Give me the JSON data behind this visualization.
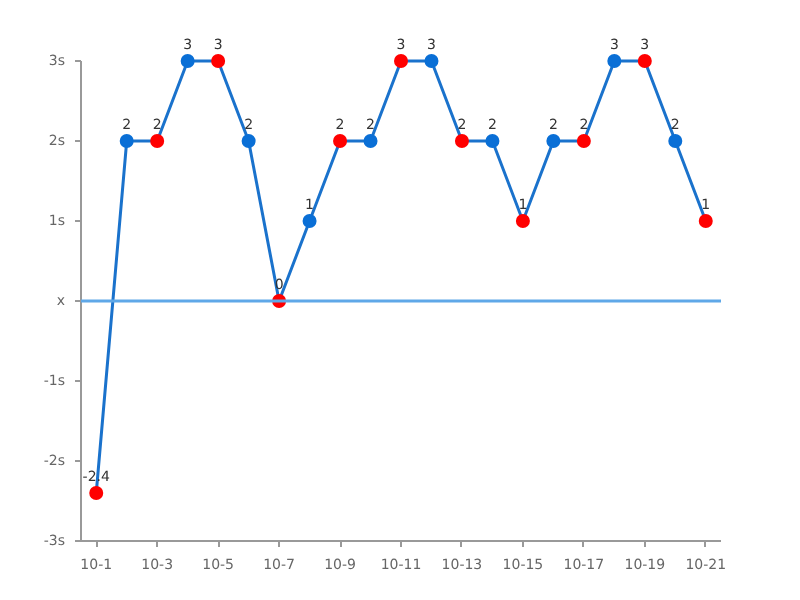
{
  "chart_data": {
    "type": "line",
    "categories": [
      "10-1",
      null,
      "10-3",
      null,
      "10-5",
      null,
      "10-7",
      null,
      "10-9",
      null,
      "10-11",
      null,
      "10-13",
      null,
      "10-15",
      null,
      "10-17",
      null,
      "10-19",
      null,
      "10-21"
    ],
    "series": [
      {
        "color": "#1a72cc",
        "values": [
          -2.4,
          2,
          2,
          3,
          3,
          2,
          0,
          1,
          2,
          2,
          3,
          3,
          2,
          2,
          1,
          2,
          2,
          3,
          3,
          2,
          1
        ],
        "colors": [
          "#ff0000",
          "#0a6fd6",
          "#ff0000",
          "#0a6fd6",
          "#ff0000",
          "#0a6fd6",
          "#ff0000",
          "#0a6fd6",
          "#ff0000",
          "#0a6fd6",
          "#ff0000",
          "#0a6fd6",
          "#ff0000",
          "#0a6fd6",
          "#ff0000",
          "#0a6fd6",
          "#ff0000",
          "#0a6fd6",
          "#ff0000",
          "#0a6fd6",
          "#ff0000"
        ]
      }
    ],
    "ylim": [
      -3,
      3
    ],
    "yticks": [
      {
        "value": -3,
        "label": "-3s"
      },
      {
        "value": -2,
        "label": "-2s"
      },
      {
        "value": -1,
        "label": "-1s"
      },
      {
        "value": 0,
        "label": "x"
      },
      {
        "value": 1,
        "label": "1s"
      },
      {
        "value": 2,
        "label": "2s"
      },
      {
        "value": 3,
        "label": "3s"
      }
    ],
    "ref_lines": [
      {
        "axis": "y",
        "value": 0,
        "color": "#5fa8e8"
      }
    ],
    "marker": "circle",
    "line_style": "solid",
    "data_labels": true,
    "grid": false
  }
}
